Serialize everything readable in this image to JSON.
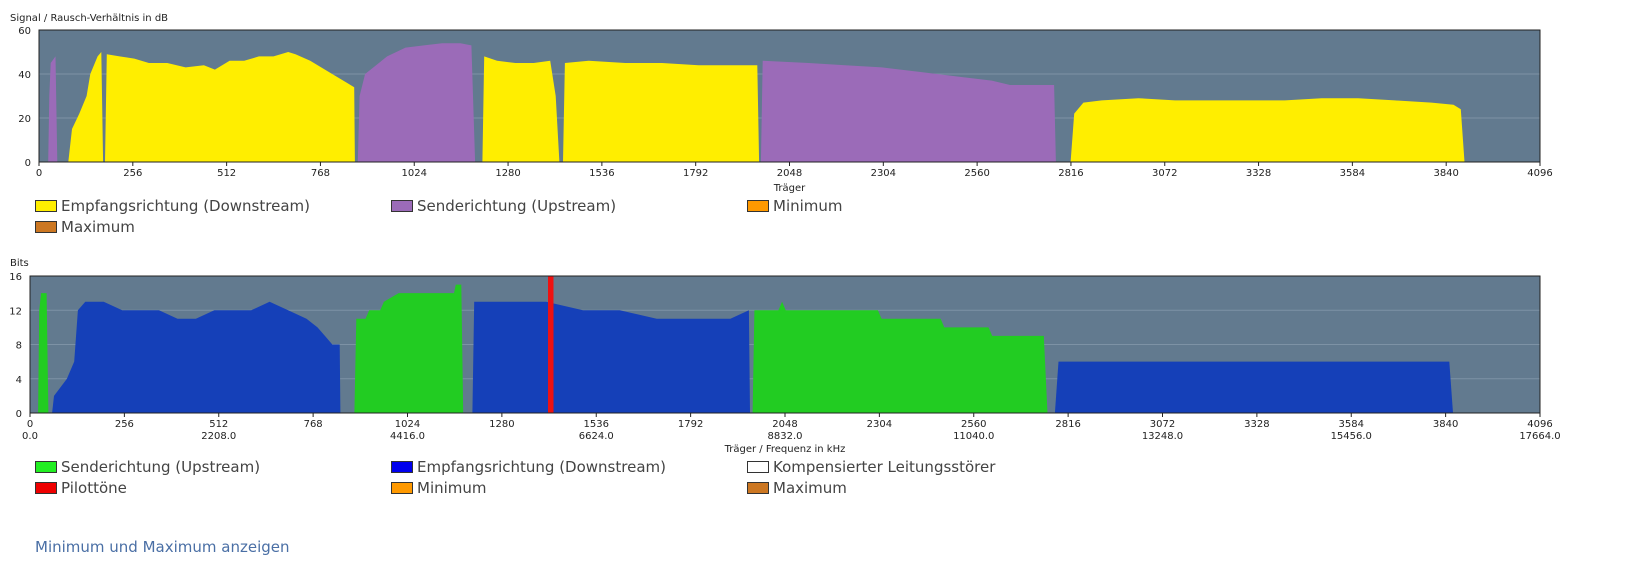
{
  "snr_chart": {
    "ylabel": "Signal / Rausch-Verhältnis in dB",
    "xlabel": "Träger",
    "legend": [
      {
        "label": "Empfangsrichtung (Downstream)",
        "color": "#ffee00"
      },
      {
        "label": "Senderichtung (Upstream)",
        "color": "#9b6bb8"
      },
      {
        "label": "Minimum",
        "color": "#ff9900"
      },
      {
        "label": "Maximum",
        "color": "#cc7722"
      }
    ]
  },
  "bits_chart": {
    "ylabel": "Bits",
    "xlabel": "Träger / Frequenz in kHz",
    "legend": [
      {
        "label": "Senderichtung (Upstream)",
        "color": "#22ee22"
      },
      {
        "label": "Empfangsrichtung (Downstream)",
        "color": "#0000ee"
      },
      {
        "label": "Kompensierter Leitungsstörer",
        "color": "#ffffff"
      },
      {
        "label": "Pilottöne",
        "color": "#ee0000"
      },
      {
        "label": "Minimum",
        "color": "#ff9900"
      },
      {
        "label": "Maximum",
        "color": "#cc7722"
      }
    ]
  },
  "toggle_link": "Minimum und Maximum anzeigen",
  "chart_data": [
    {
      "type": "area",
      "ylabel": "Signal / Rausch-Verhältnis in dB",
      "xlabel": "Träger",
      "xlim": [
        0,
        4096
      ],
      "ylim": [
        0,
        60
      ],
      "xticks": [
        0,
        256,
        512,
        768,
        1024,
        1280,
        1536,
        1792,
        2048,
        2304,
        2560,
        2816,
        3072,
        3328,
        3584,
        3840,
        4096
      ],
      "yticks": [
        0,
        20,
        40,
        60
      ],
      "grid": true,
      "series": [
        {
          "name": "Senderichtung (Upstream)",
          "color": "#9b6bb8",
          "segments": [
            [
              [
                25,
                0
              ],
              [
                28,
                30
              ],
              [
                32,
                45
              ],
              [
                45,
                48
              ],
              [
                50,
                0
              ]
            ],
            [
              [
                870,
                0
              ],
              [
                875,
                30
              ],
              [
                890,
                40
              ],
              [
                920,
                44
              ],
              [
                950,
                48
              ],
              [
                1000,
                52
              ],
              [
                1050,
                53
              ],
              [
                1100,
                54
              ],
              [
                1150,
                54
              ],
              [
                1180,
                53
              ],
              [
                1190,
                0
              ]
            ],
            [
              [
                1970,
                0
              ],
              [
                1975,
                46
              ],
              [
                2100,
                45
              ],
              [
                2200,
                44
              ],
              [
                2300,
                43
              ],
              [
                2400,
                41
              ],
              [
                2500,
                39
              ],
              [
                2600,
                37
              ],
              [
                2650,
                35
              ],
              [
                2700,
                35
              ],
              [
                2770,
                35
              ],
              [
                2775,
                0
              ]
            ]
          ]
        },
        {
          "name": "Empfangsrichtung (Downstream)",
          "color": "#ffee00",
          "segments": [
            [
              [
                80,
                0
              ],
              [
                90,
                15
              ],
              [
                110,
                22
              ],
              [
                130,
                30
              ],
              [
                140,
                40
              ],
              [
                160,
                48
              ],
              [
                170,
                50
              ],
              [
                175,
                0
              ]
            ],
            [
              [
                180,
                0
              ],
              [
                185,
                49
              ],
              [
                220,
                48
              ],
              [
                260,
                47
              ],
              [
                300,
                45
              ],
              [
                350,
                45
              ],
              [
                400,
                43
              ],
              [
                450,
                44
              ],
              [
                480,
                42
              ],
              [
                520,
                46
              ],
              [
                560,
                46
              ],
              [
                600,
                48
              ],
              [
                640,
                48
              ],
              [
                680,
                50
              ],
              [
                700,
                49
              ],
              [
                740,
                46
              ],
              [
                770,
                43
              ],
              [
                800,
                40
              ],
              [
                840,
                36
              ],
              [
                860,
                34
              ],
              [
                862,
                0
              ]
            ],
            [
              [
                1210,
                0
              ],
              [
                1215,
                48
              ],
              [
                1250,
                46
              ],
              [
                1300,
                45
              ],
              [
                1350,
                45
              ],
              [
                1395,
                46
              ],
              [
                1410,
                30
              ],
              [
                1420,
                0
              ]
            ],
            [
              [
                1430,
                0
              ],
              [
                1435,
                45
              ],
              [
                1500,
                46
              ],
              [
                1600,
                45
              ],
              [
                1700,
                45
              ],
              [
                1800,
                44
              ],
              [
                1900,
                44
              ],
              [
                1960,
                44
              ],
              [
                1965,
                0
              ]
            ],
            [
              [
                2815,
                0
              ],
              [
                2825,
                22
              ],
              [
                2850,
                27
              ],
              [
                2900,
                28
              ],
              [
                3000,
                29
              ],
              [
                3100,
                28
              ],
              [
                3200,
                28
              ],
              [
                3300,
                28
              ],
              [
                3400,
                28
              ],
              [
                3500,
                29
              ],
              [
                3600,
                29
              ],
              [
                3700,
                28
              ],
              [
                3800,
                27
              ],
              [
                3860,
                26
              ],
              [
                3880,
                24
              ],
              [
                3890,
                0
              ]
            ]
          ]
        }
      ]
    },
    {
      "type": "area",
      "ylabel": "Bits",
      "xlabel": "Träger / Frequenz in kHz",
      "xlim": [
        0,
        4096
      ],
      "ylim": [
        0,
        16
      ],
      "xticks": [
        0,
        256,
        512,
        768,
        1024,
        1280,
        1536,
        1792,
        2048,
        2304,
        2560,
        2816,
        3072,
        3328,
        3584,
        3840,
        4096
      ],
      "xticks_khz": [
        "0.0",
        "2208.0",
        "4416.0",
        "6624.0",
        "8832.0",
        "11040.0",
        "13248.0",
        "15456.0",
        "17664.0"
      ],
      "yticks": [
        0,
        4,
        8,
        12,
        16
      ],
      "grid": true,
      "series": [
        {
          "name": "Senderichtung (Upstream)",
          "color": "#22cc22",
          "segments": [
            [
              [
                22,
                0
              ],
              [
                25,
                12
              ],
              [
                30,
                14
              ],
              [
                45,
                14
              ],
              [
                50,
                0
              ]
            ],
            [
              [
                880,
                0
              ],
              [
                885,
                11
              ],
              [
                910,
                11
              ],
              [
                920,
                12
              ],
              [
                950,
                12
              ],
              [
                960,
                13
              ],
              [
                1000,
                14
              ],
              [
                1100,
                14
              ],
              [
                1150,
                14
              ],
              [
                1155,
                15
              ],
              [
                1170,
                15
              ],
              [
                1175,
                0
              ]
            ],
            [
              [
                1960,
                0
              ],
              [
                1965,
                12
              ],
              [
                2030,
                12
              ],
              [
                2040,
                13
              ],
              [
                2050,
                12
              ],
              [
                2300,
                12
              ],
              [
                2310,
                11
              ],
              [
                2470,
                11
              ],
              [
                2480,
                10
              ],
              [
                2600,
                10
              ],
              [
                2610,
                9
              ],
              [
                2750,
                9
              ],
              [
                2760,
                0
              ]
            ]
          ]
        },
        {
          "name": "Empfangsrichtung (Downstream)",
          "color": "#1540b8",
          "segments": [
            [
              [
                60,
                0
              ],
              [
                65,
                2
              ],
              [
                100,
                4
              ],
              [
                120,
                6
              ],
              [
                130,
                12
              ],
              [
                150,
                13
              ],
              [
                200,
                13
              ],
              [
                250,
                12
              ],
              [
                300,
                12
              ],
              [
                350,
                12
              ],
              [
                400,
                11
              ],
              [
                450,
                11
              ],
              [
                500,
                12
              ],
              [
                600,
                12
              ],
              [
                650,
                13
              ],
              [
                700,
                12
              ],
              [
                750,
                11
              ],
              [
                780,
                10
              ],
              [
                800,
                9
              ],
              [
                820,
                8
              ],
              [
                840,
                8
              ],
              [
                842,
                0
              ]
            ],
            [
              [
                1200,
                0
              ],
              [
                1205,
                13
              ],
              [
                1300,
                13
              ],
              [
                1400,
                13
              ],
              [
                1500,
                12
              ],
              [
                1600,
                12
              ],
              [
                1700,
                11
              ],
              [
                1800,
                11
              ],
              [
                1900,
                11
              ],
              [
                1950,
                12
              ],
              [
                1953,
                0
              ]
            ],
            [
              [
                2780,
                0
              ],
              [
                2790,
                6
              ],
              [
                2850,
                6
              ],
              [
                3000,
                6
              ],
              [
                3100,
                6
              ],
              [
                3200,
                6
              ],
              [
                3300,
                6
              ],
              [
                3400,
                6
              ],
              [
                3500,
                6
              ],
              [
                3600,
                6
              ],
              [
                3700,
                6
              ],
              [
                3800,
                6
              ],
              [
                3850,
                6
              ],
              [
                3860,
                0
              ]
            ]
          ]
        },
        {
          "name": "Pilottöne",
          "color": "#ee1111",
          "segments": [
            [
              [
                1405,
                0
              ],
              [
                1405,
                16
              ],
              [
                1420,
                16
              ],
              [
                1420,
                0
              ]
            ]
          ]
        }
      ]
    }
  ]
}
